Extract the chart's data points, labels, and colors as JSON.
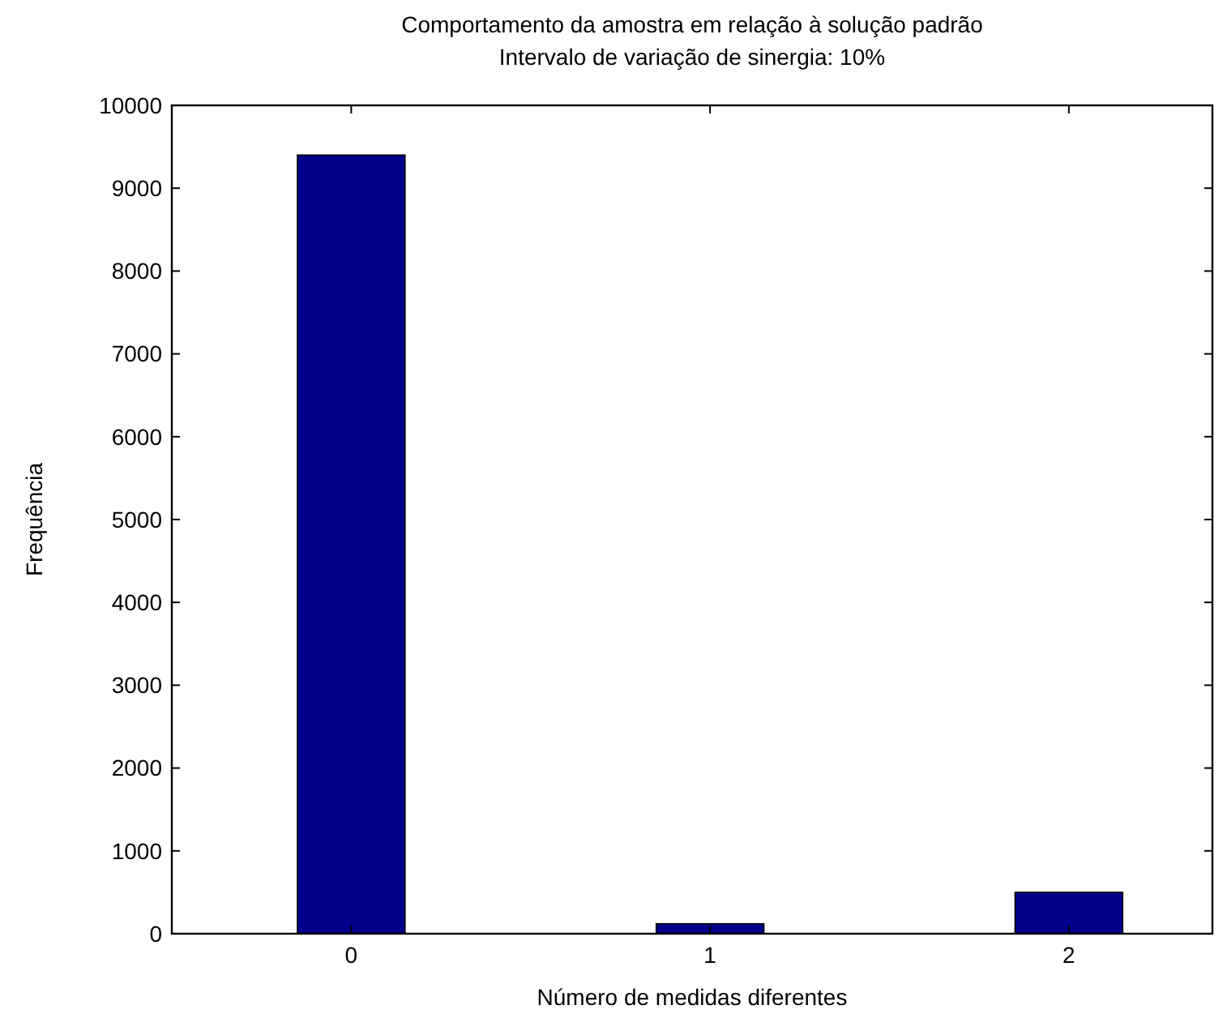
{
  "chart_data": {
    "type": "bar",
    "title": "Comportamento da amostra em relação à solução padrão",
    "subtitle": "Intervalo de variação de sinergia: 10%",
    "xlabel": "Número de medidas diferentes",
    "ylabel": "Frequência",
    "categories": [
      "0",
      "1",
      "2"
    ],
    "values": [
      9400,
      120,
      500
    ],
    "color": "#00008b",
    "ylim": [
      0,
      10000
    ],
    "yticks": [
      0,
      1000,
      2000,
      3000,
      4000,
      5000,
      6000,
      7000,
      8000,
      9000,
      10000
    ],
    "grid": false
  }
}
